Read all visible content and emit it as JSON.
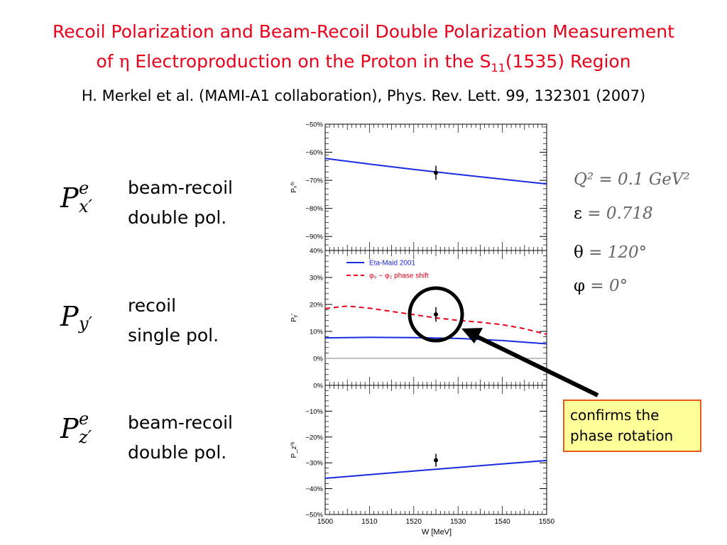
{
  "title_line1": "Recoil Polarization and Beam-Recoil Double Polarization Measurement",
  "title_line2_pre": "of ",
  "title_line2_eta": "η",
  "title_line2_mid": " Electroproduction on the Proton in the S",
  "title_line2_sub": "11",
  "title_line2_post": "(1535) Region",
  "reference": "H. Merkel et al. (MAMI-A1 collaboration), Phys. Rev. Lett. 99, 132301 (2007)",
  "observables": [
    {
      "symbol": "P",
      "sup": "e",
      "sub": "x′",
      "desc1": "beam-recoil",
      "desc2": "double pol."
    },
    {
      "symbol": "P",
      "sup": "",
      "sub": "y′",
      "desc1": "recoil",
      "desc2": "single pol."
    },
    {
      "symbol": "P",
      "sup": "e",
      "sub": "z′",
      "desc1": "beam-recoil",
      "desc2": "double pol."
    }
  ],
  "conditions": [
    {
      "label": "Q² = 0.1 GeV²"
    },
    {
      "greek": "ε",
      "rest": " = 0.718"
    },
    {
      "greek": "θ",
      "rest": " = 120°"
    },
    {
      "greek": "φ",
      "rest": " = 0°"
    }
  ],
  "callout": {
    "line1": "confirms the",
    "line2": "phase rotation"
  },
  "colors": {
    "title": "#e8001c",
    "maid": "#1a2be0",
    "phase": "#e8001c",
    "callout_bg": "#ffff99",
    "callout_border": "#e85a1f"
  },
  "chart_data": {
    "type": "line",
    "xlabel": "W  [MeV]",
    "x_ticks": [
      "1500",
      "1510",
      "1520",
      "1530",
      "1540",
      "1550"
    ],
    "xlim": [
      1500,
      1550
    ],
    "legend": [
      {
        "name": "Eta-Maid 2001",
        "style": "solid",
        "color": "#1a2be0"
      },
      {
        "name": "φ₀ − φ₂  phase shift",
        "style": "dashed",
        "color": "#e8001c"
      }
    ],
    "panels": [
      {
        "ylabel": "Pₓ′ʰ",
        "ylim": [
          -95,
          -50
        ],
        "y_ticks": [
          {
            "v": -50,
            "t": "−50%"
          },
          {
            "v": -60,
            "t": "−60%"
          },
          {
            "v": -70,
            "t": "−70%"
          },
          {
            "v": -80,
            "t": "−80%"
          },
          {
            "v": -90,
            "t": "−90%"
          }
        ],
        "series": [
          {
            "style": "solid",
            "color": "#1a2be0",
            "x": [
              1500,
              1510,
              1520,
              1530,
              1540,
              1550
            ],
            "y": [
              -62.2,
              -64.2,
              -66.1,
              -67.9,
              -69.6,
              -71.3
            ]
          }
        ],
        "data_points": [
          {
            "x": 1525,
            "y": -67.3,
            "err": 2.5
          }
        ]
      },
      {
        "ylabel": "Pᵧ′",
        "ylim": [
          -10,
          40
        ],
        "y_ticks": [
          {
            "v": 40,
            "t": "40%"
          },
          {
            "v": 30,
            "t": "30%"
          },
          {
            "v": 20,
            "t": "20%"
          },
          {
            "v": 10,
            "t": "10%"
          },
          {
            "v": 0,
            "t": "0%"
          }
        ],
        "zero_line": true,
        "series": [
          {
            "style": "solid",
            "color": "#1a2be0",
            "x": [
              1500,
              1510,
              1520,
              1530,
              1540,
              1550
            ],
            "y": [
              7.6,
              7.8,
              7.7,
              7.4,
              6.6,
              5.4
            ]
          },
          {
            "style": "dashed",
            "color": "#e8001c",
            "x": [
              1500,
              1505,
              1510,
              1515,
              1520,
              1525,
              1530,
              1535,
              1540,
              1545,
              1550
            ],
            "y": [
              18.5,
              19.4,
              18.6,
              17.4,
              16.2,
              15.0,
              14.1,
              13.4,
              12.5,
              11.0,
              8.9
            ]
          }
        ],
        "data_points": [
          {
            "x": 1525,
            "y": 16.3,
            "err": 2.7
          }
        ]
      },
      {
        "ylabel": "P_z′ʰ",
        "ylim": [
          -50,
          0
        ],
        "y_ticks": [
          {
            "v": 0,
            "t": "0%"
          },
          {
            "v": -10,
            "t": "−10%"
          },
          {
            "v": -20,
            "t": "−20%"
          },
          {
            "v": -30,
            "t": "−30%"
          },
          {
            "v": -40,
            "t": "−40%"
          },
          {
            "v": -50,
            "t": "−50%"
          }
        ],
        "series": [
          {
            "style": "solid",
            "color": "#1a2be0",
            "x": [
              1500,
              1510,
              1520,
              1530,
              1540,
              1550
            ],
            "y": [
              -36.0,
              -34.6,
              -33.2,
              -31.8,
              -30.4,
              -29.1
            ]
          }
        ],
        "data_points": [
          {
            "x": 1525,
            "y": -29.0,
            "err": 2.5
          }
        ]
      }
    ]
  }
}
